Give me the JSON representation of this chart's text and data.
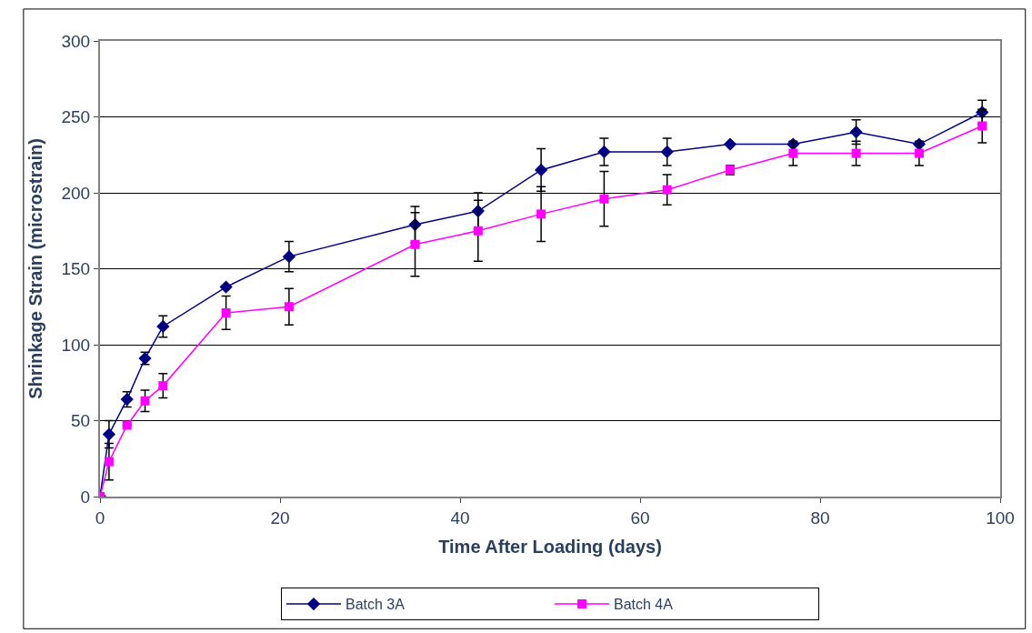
{
  "chart_data": {
    "type": "line",
    "xlabel": "Time After Loading (days)",
    "ylabel": "Shrinkage Strain (microstrain)",
    "x": [
      0,
      1,
      3,
      5,
      7,
      14,
      21,
      35,
      42,
      49,
      56,
      63,
      70,
      77,
      84,
      91,
      98
    ],
    "series": [
      {
        "name": "Batch 3A",
        "color": "#000080",
        "marker": "diamond",
        "values": [
          0,
          41,
          64,
          91,
          112,
          138,
          158,
          179,
          188,
          215,
          227,
          227,
          232,
          232,
          240,
          232,
          253
        ],
        "errors": [
          null,
          9,
          5,
          4,
          7,
          null,
          10,
          12,
          12,
          14,
          9,
          9,
          null,
          null,
          8,
          null,
          8
        ]
      },
      {
        "name": "Batch 4A",
        "color": "#ff00ff",
        "marker": "square",
        "values": [
          0,
          23,
          47,
          63,
          73,
          121,
          125,
          166,
          175,
          186,
          196,
          202,
          215,
          226,
          226,
          226,
          244
        ],
        "errors": [
          null,
          12,
          null,
          7,
          8,
          11,
          12,
          21,
          20,
          18,
          18,
          10,
          3,
          8,
          8,
          8,
          11
        ]
      }
    ],
    "xlim": [
      0,
      100
    ],
    "xticks": [
      0,
      20,
      40,
      60,
      80,
      100
    ],
    "ylim": [
      0,
      300
    ],
    "yticks": [
      0,
      50,
      100,
      150,
      200,
      250,
      300
    ],
    "grid": "y",
    "legend": "bottom",
    "line_style": "solid"
  }
}
